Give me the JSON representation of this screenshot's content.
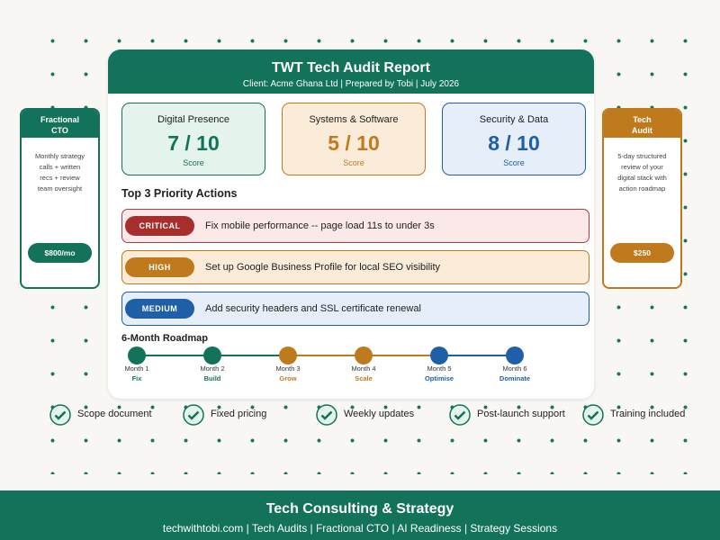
{
  "report": {
    "title": "TWT Tech Audit Report",
    "subtitle": "Client: Acme Ghana Ltd | Prepared by Tobi | July 2026"
  },
  "scores": [
    {
      "label": "Digital Presence",
      "score": "7 / 10",
      "caption": "Score"
    },
    {
      "label": "Systems & Software",
      "score": "5 / 10",
      "caption": "Score"
    },
    {
      "label": "Security & Data",
      "score": "8 / 10",
      "caption": "Score"
    }
  ],
  "actions": {
    "title": "Top 3 Priority Actions",
    "items": [
      {
        "level": "CRITICAL",
        "text": "Fix mobile performance -- page load 11s to under 3s"
      },
      {
        "level": "HIGH",
        "text": "Set up Google Business Profile for local SEO visibility"
      },
      {
        "level": "MEDIUM",
        "text": "Add security headers and SSL certificate renewal"
      }
    ]
  },
  "roadmap": {
    "title": "6-Month Roadmap",
    "steps": [
      {
        "month": "Month 1",
        "label": "Fix"
      },
      {
        "month": "Month 2",
        "label": "Build"
      },
      {
        "month": "Month 3",
        "label": "Grow"
      },
      {
        "month": "Month 4",
        "label": "Scale"
      },
      {
        "month": "Month 5",
        "label": "Optimise"
      },
      {
        "month": "Month 6",
        "label": "Dominate"
      }
    ]
  },
  "side_left": {
    "title": [
      "Fractional",
      "CTO"
    ],
    "body": [
      "Monthly strategy",
      "calls + written",
      "recs + review",
      "team oversight"
    ],
    "price": "$800/mo"
  },
  "side_right": {
    "title": [
      "Tech",
      "Audit"
    ],
    "body": [
      "5-day structured",
      "review of your",
      "digital stack with",
      "action roadmap"
    ],
    "price": "$250"
  },
  "features": [
    "Scope document",
    "Fixed pricing",
    "Weekly updates",
    "Post-launch support",
    "Training included"
  ],
  "footer": {
    "title": "Tech Consulting & Strategy",
    "links": "techwithtobi.com | Tech Audits | Fractional CTO | AI Readiness | Strategy Sessions"
  }
}
